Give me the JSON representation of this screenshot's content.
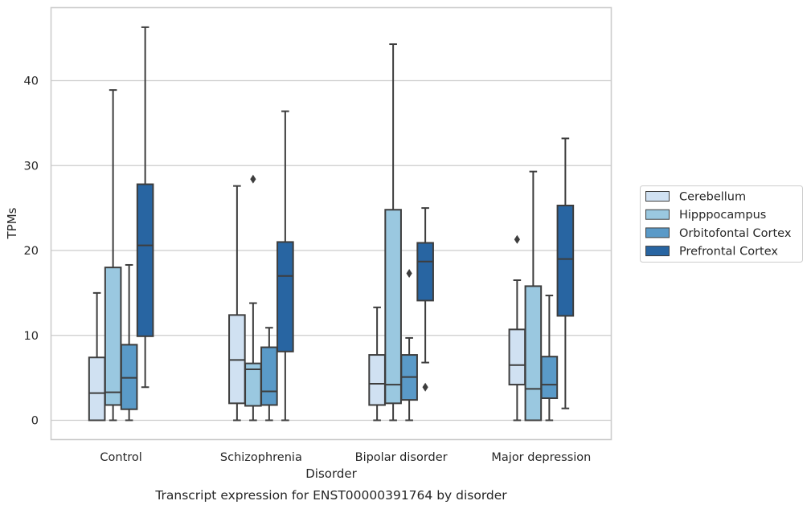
{
  "chart_data": {
    "type": "boxplot",
    "caption": "Transcript expression for ENST00000391764 by disorder",
    "xlabel": "Disorder",
    "ylabel": "TPMs",
    "categories": [
      "Control",
      "Schizophrenia",
      "Bipolar disorder",
      "Major depression"
    ],
    "yticks": [
      0,
      10,
      20,
      30,
      40
    ],
    "ylim": [
      -2.2,
      48.6
    ],
    "grid": "horizontal",
    "legend_position": "right",
    "series": [
      {
        "name": "Cerebellum",
        "color": "#d0e1f2",
        "boxes": [
          {
            "whislo": 0,
            "q1": 0,
            "med": 3.2,
            "q3": 7.4,
            "whishi": 15.0,
            "fliers": []
          },
          {
            "whislo": 0,
            "q1": 2.0,
            "med": 7.1,
            "q3": 12.4,
            "whishi": 27.6,
            "fliers": []
          },
          {
            "whislo": 0,
            "q1": 1.8,
            "med": 4.3,
            "q3": 7.7,
            "whishi": 13.3,
            "fliers": []
          },
          {
            "whislo": 0,
            "q1": 4.2,
            "med": 6.5,
            "q3": 10.7,
            "whishi": 16.5,
            "fliers": [
              21.3
            ]
          }
        ]
      },
      {
        "name": "Hipppocampus",
        "color": "#9ac8e0",
        "boxes": [
          {
            "whislo": 0,
            "q1": 1.8,
            "med": 3.3,
            "q3": 18.0,
            "whishi": 38.9,
            "fliers": []
          },
          {
            "whislo": 0,
            "q1": 1.7,
            "med": 6.0,
            "q3": 6.7,
            "whishi": 13.8,
            "fliers": [
              28.4
            ]
          },
          {
            "whislo": 0,
            "q1": 2.0,
            "med": 4.2,
            "q3": 24.8,
            "whishi": 44.3,
            "fliers": []
          },
          {
            "whislo": 0,
            "q1": 0,
            "med": 3.7,
            "q3": 15.8,
            "whishi": 29.3,
            "fliers": []
          }
        ]
      },
      {
        "name": "Orbitofontal Cortex",
        "color": "#5a9ac8",
        "boxes": [
          {
            "whislo": 0,
            "q1": 1.3,
            "med": 5.0,
            "q3": 8.9,
            "whishi": 18.3,
            "fliers": []
          },
          {
            "whislo": 0,
            "q1": 1.8,
            "med": 3.4,
            "q3": 8.6,
            "whishi": 10.9,
            "fliers": []
          },
          {
            "whislo": 0,
            "q1": 2.4,
            "med": 5.1,
            "q3": 7.7,
            "whishi": 9.7,
            "fliers": [
              17.3
            ]
          },
          {
            "whislo": 0,
            "q1": 2.6,
            "med": 4.2,
            "q3": 7.5,
            "whishi": 14.7,
            "fliers": []
          }
        ]
      },
      {
        "name": "Prefrontal Cortex",
        "color": "#2865a2",
        "boxes": [
          {
            "whislo": 3.9,
            "q1": 9.9,
            "med": 20.6,
            "q3": 27.8,
            "whishi": 46.3,
            "fliers": []
          },
          {
            "whislo": 0,
            "q1": 8.1,
            "med": 17.0,
            "q3": 21.0,
            "whishi": 36.4,
            "fliers": []
          },
          {
            "whislo": 6.8,
            "q1": 14.1,
            "med": 18.7,
            "q3": 20.9,
            "whishi": 25.0,
            "fliers": [
              3.9
            ]
          },
          {
            "whislo": 1.4,
            "q1": 12.3,
            "med": 19.0,
            "q3": 25.3,
            "whishi": 33.2,
            "fliers": []
          }
        ]
      }
    ]
  }
}
